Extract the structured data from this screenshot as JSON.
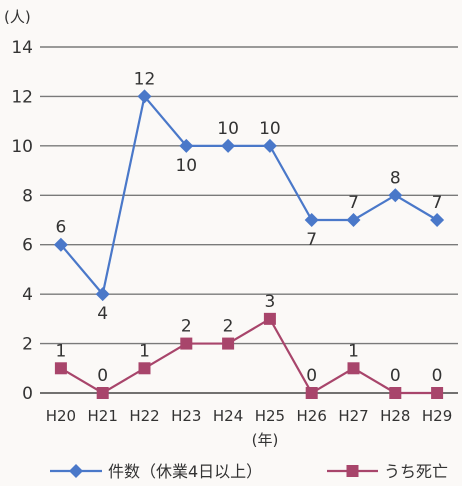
{
  "chart_data": {
    "type": "line",
    "y_unit_label": "(人)",
    "x_unit_label": "(年)",
    "categories": [
      "H20",
      "H21",
      "H22",
      "H23",
      "H24",
      "H25",
      "H26",
      "H27",
      "H28",
      "H29"
    ],
    "ylim": [
      0,
      14
    ],
    "yticks": [
      0,
      2,
      4,
      6,
      8,
      10,
      12,
      14
    ],
    "grid": true,
    "legend_position": "bottom",
    "series": [
      {
        "name": "件数（休業4日以上）",
        "values": [
          6,
          4,
          12,
          10,
          10,
          10,
          7,
          7,
          8,
          7
        ],
        "color": "#4a78c9",
        "marker": "diamond",
        "label_positions": [
          "above",
          "below",
          "above",
          "below",
          "above",
          "above",
          "below",
          "above",
          "above",
          "above"
        ]
      },
      {
        "name": "うち死亡",
        "values": [
          1,
          0,
          1,
          2,
          2,
          3,
          0,
          1,
          0,
          0
        ],
        "color": "#a8456b",
        "marker": "square",
        "label_positions": [
          "above",
          "above",
          "above",
          "above",
          "above",
          "above",
          "above",
          "above",
          "above",
          "above"
        ]
      }
    ]
  }
}
